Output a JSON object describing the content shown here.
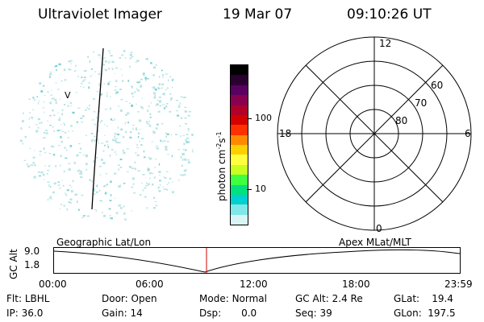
{
  "header": {
    "title": "Ultraviolet Imager",
    "date": "19 Mar 07",
    "time": "09:10:26 UT"
  },
  "image_panel": {
    "marker_label": "V"
  },
  "colorbar": {
    "unit_label_main": "photon cm",
    "unit_sup1": "-2",
    "unit_mid": "s",
    "unit_sup2": "-1",
    "tick_labels": [
      "100",
      "10"
    ],
    "colors": [
      "#000000",
      "#2a0030",
      "#5a0060",
      "#8a0050",
      "#b0002a",
      "#d40000",
      "#ff3000",
      "#ff8a00",
      "#ffd000",
      "#ffff40",
      "#c8ff20",
      "#40ff40",
      "#00e080",
      "#00d0d0",
      "#80e8e8",
      "#d8f4f4"
    ]
  },
  "polar_grid": {
    "mlt_labels": {
      "top": "12",
      "left": "18",
      "right": "6",
      "bottom": "0"
    },
    "lat_labels": [
      "60",
      "70",
      "80"
    ]
  },
  "timeline": {
    "ylabel": "GC Alt",
    "y_ticks": [
      "9.0",
      "1.8"
    ],
    "left_caption": "Geographic Lat/Lon",
    "right_caption": "Apex MLat/MLT",
    "x_ticks": [
      "00:00",
      "06:00",
      "12:00",
      "18:00",
      "23:59"
    ]
  },
  "info": {
    "row1": [
      {
        "label": "Flt:",
        "value": "LBHL"
      },
      {
        "label": "Door:",
        "value": "Open"
      },
      {
        "label": "Mode:",
        "value": "Normal"
      },
      {
        "label": "GC Alt:",
        "value": "2.4 Re"
      },
      {
        "label": "GLat:",
        "value": "19.4"
      }
    ],
    "row2": [
      {
        "label": "IP:",
        "value": "36.0"
      },
      {
        "label": "Gain:",
        "value": "14"
      },
      {
        "label": "Dsp:",
        "value": "0.0"
      },
      {
        "label": "Seq:",
        "value": "39"
      },
      {
        "label": "GLon:",
        "value": "197.5"
      }
    ]
  },
  "colors": {
    "speckle": "#b8e4e4",
    "speckle_dark": "#7fd0d6",
    "marker_line": "#d00000",
    "ink": "#000000"
  }
}
